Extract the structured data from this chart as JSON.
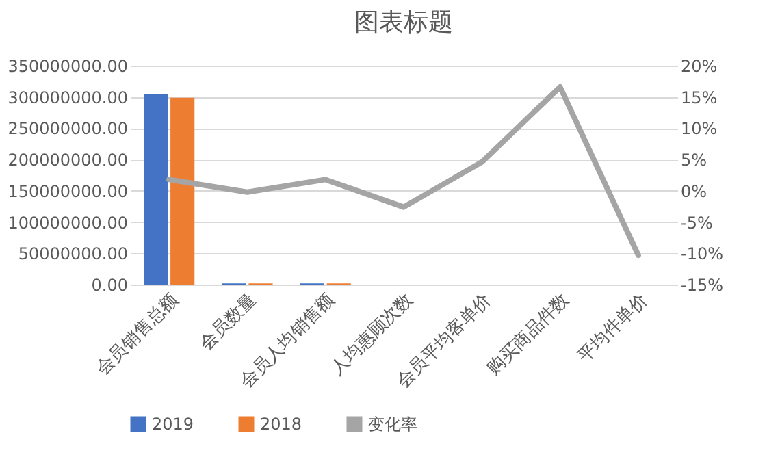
{
  "chart_data": {
    "type": "bar",
    "title": "图表标题",
    "categories": [
      "会员销售总额",
      "会员数量",
      "会员人均销售额",
      "人均惠顾次数",
      "会员平均客单价",
      "购买商品件数",
      "平均件单价"
    ],
    "series": [
      {
        "name": "2019",
        "color": "#4472c4",
        "values": [
          305000000,
          2000000,
          2000000,
          0,
          0,
          0,
          0
        ]
      },
      {
        "name": "2018",
        "color": "#ed7d31",
        "values": [
          299000000,
          2000000,
          2000000,
          0,
          0,
          0,
          0
        ]
      },
      {
        "name": "变化率",
        "type": "line",
        "axis": "y2",
        "color": "#a5a5a5",
        "values": [
          1.8,
          -0.2,
          1.8,
          -2.6,
          4.6,
          16.6,
          -10.3
        ]
      }
    ],
    "ylim": [
      0,
      350000000
    ],
    "yticks": [
      {
        "value": 0,
        "label": "0.00"
      },
      {
        "value": 50000000,
        "label": "50000000.00"
      },
      {
        "value": 100000000,
        "label": "100000000.00"
      },
      {
        "value": 150000000,
        "label": "150000000.00"
      },
      {
        "value": 200000000,
        "label": "200000000.00"
      },
      {
        "value": 250000000,
        "label": "250000000.00"
      },
      {
        "value": 300000000,
        "label": "300000000.00"
      },
      {
        "value": 350000000,
        "label": "350000000.00"
      }
    ],
    "y2lim": [
      -15,
      20
    ],
    "y2ticks": [
      {
        "value": -15,
        "label": "-15%"
      },
      {
        "value": -10,
        "label": "-10%"
      },
      {
        "value": -5,
        "label": "-5%"
      },
      {
        "value": 0,
        "label": "0%"
      },
      {
        "value": 5,
        "label": "5%"
      },
      {
        "value": 10,
        "label": "10%"
      },
      {
        "value": 15,
        "label": "15%"
      },
      {
        "value": 20,
        "label": "20%"
      }
    ],
    "grid": "y",
    "legend": "bottom"
  }
}
